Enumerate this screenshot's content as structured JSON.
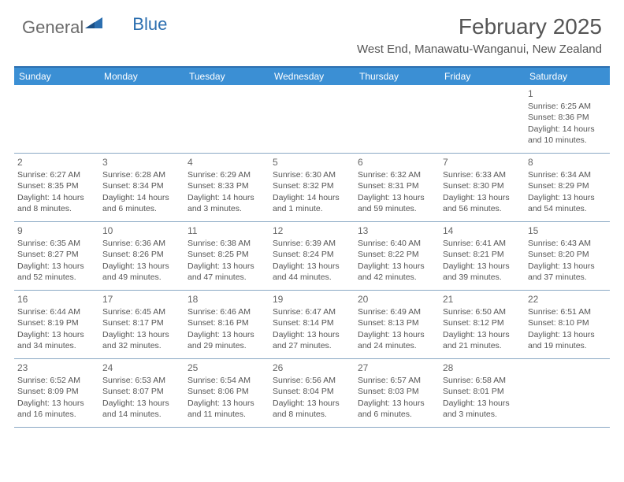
{
  "logo": {
    "part1": "General",
    "part2": "Blue"
  },
  "header": {
    "month_title": "February 2025",
    "location": "West End, Manawatu-Wanganui, New Zealand"
  },
  "colors": {
    "header_bar": "#3b8fd4",
    "border_top": "#2c6fb0",
    "row_border": "#8aa8c4",
    "text": "#555555",
    "logo_gray": "#6b6b6b",
    "logo_blue": "#2c6fb0"
  },
  "day_names": [
    "Sunday",
    "Monday",
    "Tuesday",
    "Wednesday",
    "Thursday",
    "Friday",
    "Saturday"
  ],
  "weeks": [
    [
      null,
      null,
      null,
      null,
      null,
      null,
      {
        "n": "1",
        "sr": "6:25 AM",
        "ss": "8:36 PM",
        "dl": "14 hours and 10 minutes."
      }
    ],
    [
      {
        "n": "2",
        "sr": "6:27 AM",
        "ss": "8:35 PM",
        "dl": "14 hours and 8 minutes."
      },
      {
        "n": "3",
        "sr": "6:28 AM",
        "ss": "8:34 PM",
        "dl": "14 hours and 6 minutes."
      },
      {
        "n": "4",
        "sr": "6:29 AM",
        "ss": "8:33 PM",
        "dl": "14 hours and 3 minutes."
      },
      {
        "n": "5",
        "sr": "6:30 AM",
        "ss": "8:32 PM",
        "dl": "14 hours and 1 minute."
      },
      {
        "n": "6",
        "sr": "6:32 AM",
        "ss": "8:31 PM",
        "dl": "13 hours and 59 minutes."
      },
      {
        "n": "7",
        "sr": "6:33 AM",
        "ss": "8:30 PM",
        "dl": "13 hours and 56 minutes."
      },
      {
        "n": "8",
        "sr": "6:34 AM",
        "ss": "8:29 PM",
        "dl": "13 hours and 54 minutes."
      }
    ],
    [
      {
        "n": "9",
        "sr": "6:35 AM",
        "ss": "8:27 PM",
        "dl": "13 hours and 52 minutes."
      },
      {
        "n": "10",
        "sr": "6:36 AM",
        "ss": "8:26 PM",
        "dl": "13 hours and 49 minutes."
      },
      {
        "n": "11",
        "sr": "6:38 AM",
        "ss": "8:25 PM",
        "dl": "13 hours and 47 minutes."
      },
      {
        "n": "12",
        "sr": "6:39 AM",
        "ss": "8:24 PM",
        "dl": "13 hours and 44 minutes."
      },
      {
        "n": "13",
        "sr": "6:40 AM",
        "ss": "8:22 PM",
        "dl": "13 hours and 42 minutes."
      },
      {
        "n": "14",
        "sr": "6:41 AM",
        "ss": "8:21 PM",
        "dl": "13 hours and 39 minutes."
      },
      {
        "n": "15",
        "sr": "6:43 AM",
        "ss": "8:20 PM",
        "dl": "13 hours and 37 minutes."
      }
    ],
    [
      {
        "n": "16",
        "sr": "6:44 AM",
        "ss": "8:19 PM",
        "dl": "13 hours and 34 minutes."
      },
      {
        "n": "17",
        "sr": "6:45 AM",
        "ss": "8:17 PM",
        "dl": "13 hours and 32 minutes."
      },
      {
        "n": "18",
        "sr": "6:46 AM",
        "ss": "8:16 PM",
        "dl": "13 hours and 29 minutes."
      },
      {
        "n": "19",
        "sr": "6:47 AM",
        "ss": "8:14 PM",
        "dl": "13 hours and 27 minutes."
      },
      {
        "n": "20",
        "sr": "6:49 AM",
        "ss": "8:13 PM",
        "dl": "13 hours and 24 minutes."
      },
      {
        "n": "21",
        "sr": "6:50 AM",
        "ss": "8:12 PM",
        "dl": "13 hours and 21 minutes."
      },
      {
        "n": "22",
        "sr": "6:51 AM",
        "ss": "8:10 PM",
        "dl": "13 hours and 19 minutes."
      }
    ],
    [
      {
        "n": "23",
        "sr": "6:52 AM",
        "ss": "8:09 PM",
        "dl": "13 hours and 16 minutes."
      },
      {
        "n": "24",
        "sr": "6:53 AM",
        "ss": "8:07 PM",
        "dl": "13 hours and 14 minutes."
      },
      {
        "n": "25",
        "sr": "6:54 AM",
        "ss": "8:06 PM",
        "dl": "13 hours and 11 minutes."
      },
      {
        "n": "26",
        "sr": "6:56 AM",
        "ss": "8:04 PM",
        "dl": "13 hours and 8 minutes."
      },
      {
        "n": "27",
        "sr": "6:57 AM",
        "ss": "8:03 PM",
        "dl": "13 hours and 6 minutes."
      },
      {
        "n": "28",
        "sr": "6:58 AM",
        "ss": "8:01 PM",
        "dl": "13 hours and 3 minutes."
      },
      null
    ]
  ],
  "labels": {
    "sunrise": "Sunrise:",
    "sunset": "Sunset:",
    "daylight": "Daylight:"
  }
}
